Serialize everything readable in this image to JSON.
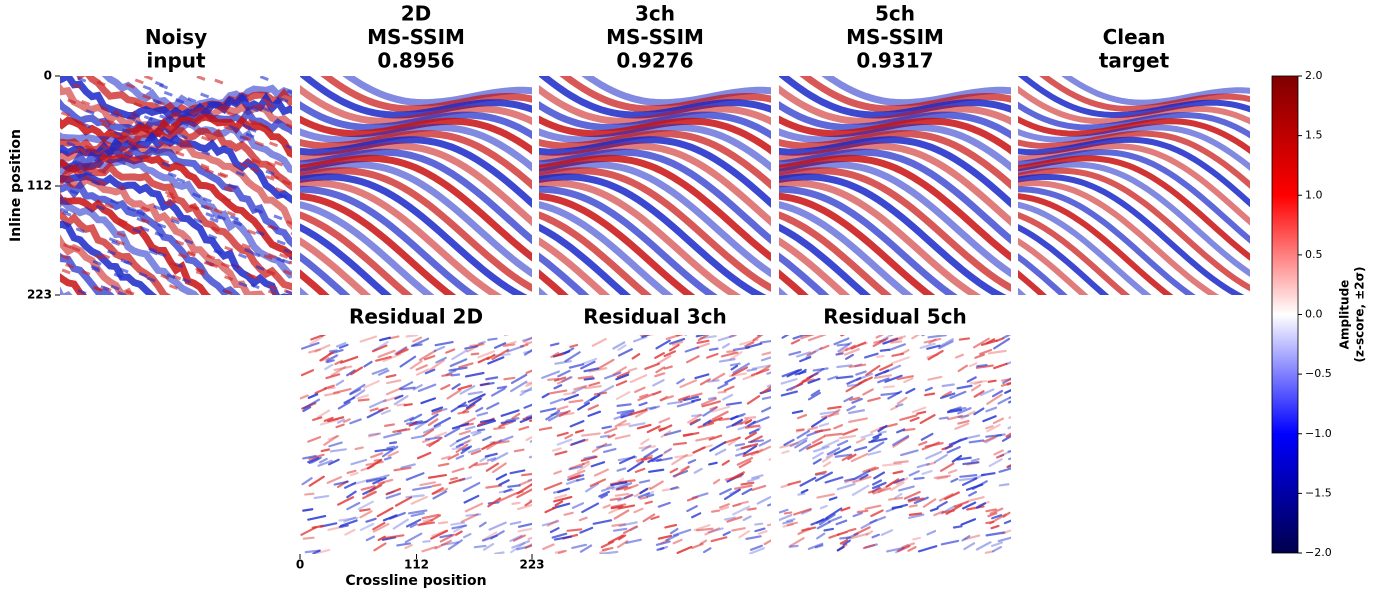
{
  "chart_data": {
    "type": "image-grid",
    "top_panels": [
      {
        "title": [
          "Noisy",
          "input"
        ]
      },
      {
        "title": [
          "2D",
          "MS-SSIM",
          "0.8956"
        ]
      },
      {
        "title": [
          "3ch",
          "MS-SSIM",
          "0.9276"
        ]
      },
      {
        "title": [
          "5ch",
          "MS-SSIM",
          "0.9317"
        ]
      },
      {
        "title": [
          "Clean",
          "target"
        ]
      }
    ],
    "bottom_panels": [
      {
        "title": [
          "Residual 2D"
        ]
      },
      {
        "title": [
          "Residual 3ch"
        ]
      },
      {
        "title": [
          "Residual 5ch"
        ]
      }
    ],
    "ylabel": "Inline position",
    "ylim": [
      0,
      223
    ],
    "yticks": [
      0,
      112,
      223
    ],
    "xlabel": "Crossline position",
    "xlim": [
      0,
      223
    ],
    "xticks": [
      0,
      112,
      223
    ],
    "colorbar": {
      "label": [
        "Amplitude",
        "(z-score, ±2σ)"
      ],
      "lim": [
        -2,
        2
      ],
      "ticks": [
        {
          "value": -2,
          "label": "−2.0"
        },
        {
          "value": -1.5,
          "label": "−1.5"
        },
        {
          "value": -1,
          "label": "−1.0"
        },
        {
          "value": -0.5,
          "label": "−0.5"
        },
        {
          "value": 0,
          "label": "0.0"
        },
        {
          "value": 0.5,
          "label": "0.5"
        },
        {
          "value": 1,
          "label": "1.0"
        },
        {
          "value": 1.5,
          "label": "1.5"
        },
        {
          "value": 2,
          "label": "2.0"
        }
      ],
      "colormap": [
        "#00004c",
        "#0000ff",
        "#ffffff",
        "#ff0000",
        "#7f0000"
      ]
    }
  }
}
